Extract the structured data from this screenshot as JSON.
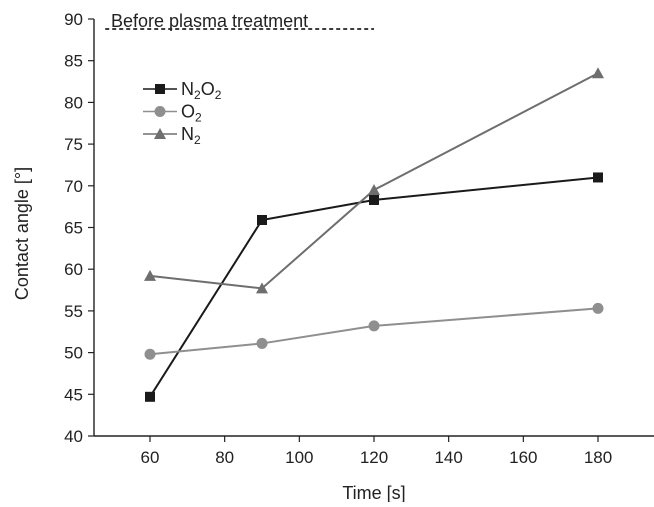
{
  "chart_data": {
    "type": "line",
    "title": "",
    "xlabel": "Time [s]",
    "ylabel": "Contact angle [°]",
    "xlim": [
      45,
      195
    ],
    "ylim": [
      40,
      90
    ],
    "x_ticks": [
      60,
      80,
      100,
      120,
      140,
      160,
      180
    ],
    "y_ticks": [
      40,
      45,
      50,
      55,
      60,
      65,
      70,
      75,
      80,
      85,
      90
    ],
    "grid": false,
    "legend_position": "top-left",
    "x": [
      60,
      90,
      120,
      180
    ],
    "series": [
      {
        "name": "N2O2",
        "legend_parts": [
          {
            "t": "N",
            "sub": false
          },
          {
            "t": "2",
            "sub": true
          },
          {
            "t": "O",
            "sub": false
          },
          {
            "t": "2",
            "sub": true
          }
        ],
        "values": [
          44.7,
          65.9,
          68.3,
          71.0
        ],
        "color": "#1a1a1a",
        "marker": "square"
      },
      {
        "name": "O2",
        "legend_parts": [
          {
            "t": "O",
            "sub": false
          },
          {
            "t": "2",
            "sub": true
          }
        ],
        "values": [
          49.8,
          51.1,
          53.2,
          55.3
        ],
        "color": "#8f8f8f",
        "marker": "circle"
      },
      {
        "name": "N2",
        "legend_parts": [
          {
            "t": "N",
            "sub": false
          },
          {
            "t": "2",
            "sub": true
          }
        ],
        "values": [
          59.2,
          57.7,
          69.5,
          83.5
        ],
        "color": "#6e6e6e",
        "marker": "triangle"
      }
    ],
    "reference_line": {
      "label": "Before plasma treatment",
      "y": 88.8,
      "x_range": [
        48,
        120
      ],
      "style": "dashed"
    }
  }
}
